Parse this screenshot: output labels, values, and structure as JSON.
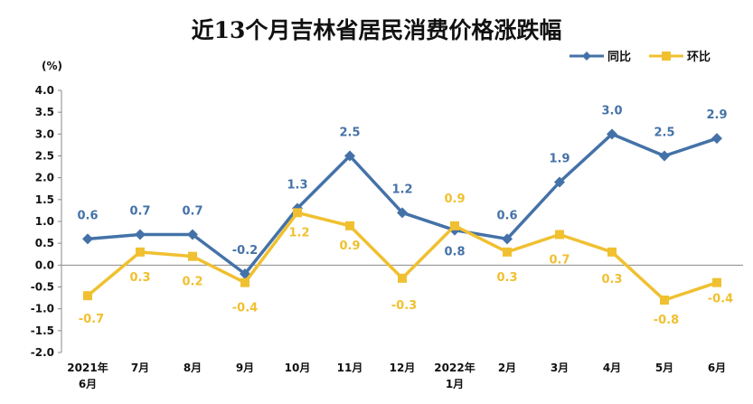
{
  "title": "近13个月吉林省居民消费价格涨跌幅",
  "chart_data": {
    "type": "line",
    "title": "近13个月吉林省居民消费价格涨跌幅",
    "ylabel": "(%)",
    "ylim": [
      -2.0,
      4.0
    ],
    "yticks": [
      "4.0",
      "3.5",
      "3.0",
      "2.5",
      "2.0",
      "1.5",
      "1.0",
      "0.5",
      "0.0",
      "-0.5",
      "-1.0",
      "-1.5",
      "-2.0"
    ],
    "categories": [
      [
        "2021年",
        "6月"
      ],
      [
        "7月"
      ],
      [
        "8月"
      ],
      [
        "9月"
      ],
      [
        "10月"
      ],
      [
        "11月"
      ],
      [
        "12月"
      ],
      [
        "2022年",
        "1月"
      ],
      [
        "2月"
      ],
      [
        "3月"
      ],
      [
        "4月"
      ],
      [
        "5月"
      ],
      [
        "6月"
      ]
    ],
    "legend_position": "top-right",
    "grid": false,
    "series": [
      {
        "name": "同比",
        "color": "#4472a8",
        "marker": "diamond",
        "values": [
          0.6,
          0.7,
          0.7,
          -0.2,
          1.3,
          2.5,
          1.2,
          0.8,
          0.6,
          1.9,
          3.0,
          2.5,
          2.9
        ],
        "labels": [
          "0.6",
          "0.7",
          "0.7",
          "-0.2",
          "1.3",
          "2.5",
          "1.2",
          "0.8",
          "0.6",
          "1.9",
          "3.0",
          "2.5",
          "2.9"
        ]
      },
      {
        "name": "环比",
        "color": "#f0c030",
        "marker": "square",
        "values": [
          -0.7,
          0.3,
          0.2,
          -0.4,
          1.2,
          0.9,
          -0.3,
          0.9,
          0.3,
          0.7,
          0.3,
          -0.8,
          -0.4
        ],
        "labels": [
          "-0.7",
          "0.3",
          "0.2",
          "-0.4",
          "1.2",
          "0.9",
          "-0.3",
          "0.9",
          "0.3",
          "0.7",
          "0.3",
          "-0.8",
          "-0.4"
        ]
      }
    ]
  }
}
